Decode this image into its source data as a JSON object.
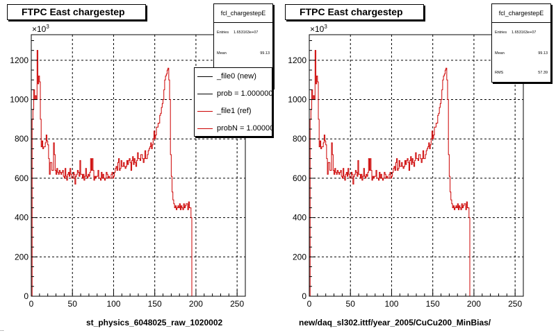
{
  "panels": [
    {
      "title": "FTPC East chargestep",
      "stats": {
        "name": "fcl_chargestepE",
        "entries_label": "Entries",
        "entries": "1.653163e+07",
        "mean_label": "Mean",
        "mean": "99.13",
        "rms_label": "RMS",
        "rms": "57.39"
      },
      "legend": [
        {
          "label": "_file0 (new)",
          "color": "#000000"
        },
        {
          "label": "prob = 1.000000",
          "color": "#000000"
        },
        {
          "label": "_file1 (ref)",
          "color": "#cc0000"
        },
        {
          "label": "probN = 1.000000",
          "color": "#cc0000"
        }
      ],
      "xlabel": "st_physics_6048025_raw_1020002",
      "exponent_base": "×10",
      "exponent_power": "3"
    },
    {
      "title": "FTPC East chargestep",
      "stats": {
        "name": "fcl_chargestepE",
        "entries_label": "Entries",
        "entries": "1.653163e+07",
        "mean_label": "Mean",
        "mean": "99.13",
        "rms_label": "RMS",
        "rms": "57.39"
      },
      "xlabel": "new/daq_sl302.ittf/year_2005/CuCu200_MinBias/",
      "exponent_base": "×10",
      "exponent_power": "3"
    }
  ],
  "footer_fragment": "...",
  "chart_data": {
    "type": "line",
    "x_axis": {
      "range": [
        0,
        260
      ],
      "ticks": [
        0,
        50,
        100,
        150,
        200,
        250
      ]
    },
    "y_axis": {
      "range": [
        0,
        1330
      ],
      "ticks": [
        0,
        200,
        400,
        600,
        800,
        1000,
        1200
      ],
      "multiplier": "1e3"
    },
    "grid": true,
    "x": [
      1,
      2,
      3,
      4,
      5,
      6,
      7,
      8,
      9,
      10,
      11,
      12,
      13,
      14,
      15,
      16,
      17,
      18,
      19,
      20,
      21,
      22,
      23,
      24,
      25,
      26,
      27,
      28,
      29,
      30,
      31,
      32,
      33,
      34,
      35,
      36,
      37,
      38,
      39,
      40,
      41,
      42,
      43,
      44,
      45,
      46,
      47,
      48,
      49,
      50,
      51,
      52,
      53,
      54,
      55,
      56,
      57,
      58,
      59,
      60,
      61,
      62,
      63,
      64,
      65,
      66,
      67,
      68,
      69,
      70,
      71,
      72,
      73,
      74,
      75,
      76,
      77,
      78,
      79,
      80,
      81,
      82,
      83,
      84,
      85,
      86,
      87,
      88,
      89,
      90,
      91,
      92,
      93,
      94,
      95,
      96,
      97,
      98,
      99,
      100,
      101,
      102,
      103,
      104,
      105,
      106,
      107,
      108,
      109,
      110,
      111,
      112,
      113,
      114,
      115,
      116,
      117,
      118,
      119,
      120,
      121,
      122,
      123,
      124,
      125,
      126,
      127,
      128,
      129,
      130,
      131,
      132,
      133,
      134,
      135,
      136,
      137,
      138,
      139,
      140,
      141,
      142,
      143,
      144,
      145,
      146,
      147,
      148,
      149,
      150,
      151,
      152,
      153,
      154,
      155,
      156,
      157,
      158,
      159,
      160,
      161,
      162,
      163,
      164,
      165,
      166,
      167,
      168,
      169,
      170,
      171,
      172,
      173,
      174,
      175,
      176,
      177,
      178,
      179,
      180,
      181,
      182,
      183,
      184,
      185,
      186,
      187,
      188,
      189,
      190,
      191,
      192,
      193,
      194,
      195,
      196,
      197,
      198,
      199,
      200,
      201,
      202,
      203,
      204,
      205,
      206,
      207,
      208,
      209,
      210,
      211,
      212,
      213,
      214,
      215,
      216,
      217,
      218,
      219,
      220,
      221,
      222,
      223,
      224,
      225,
      226,
      227,
      228,
      229,
      230,
      231,
      232,
      233,
      234,
      235,
      236,
      237,
      238,
      239,
      240,
      241,
      242,
      243,
      244,
      245,
      246,
      247,
      248,
      249,
      250,
      251,
      252,
      253,
      254,
      255,
      256,
      257,
      258,
      259,
      260
    ],
    "series": [
      {
        "color": "#cc0000",
        "values": [
          0,
          900,
          950,
          1050,
          1000,
          1020,
          1000,
          1250,
          1080,
          1120,
          1090,
          900,
          760,
          790,
          750,
          760,
          760,
          780,
          820,
          790,
          770,
          700,
          620,
          680,
          680,
          640,
          640,
          780,
          720,
          640,
          620,
          650,
          630,
          620,
          640,
          630,
          620,
          630,
          640,
          610,
          600,
          650,
          610,
          590,
          620,
          630,
          610,
          650,
          620,
          600,
          600,
          630,
          620,
          570,
          610,
          620,
          640,
          630,
          610,
          690,
          620,
          620,
          600,
          620,
          590,
          610,
          650,
          610,
          600,
          620,
          610,
          630,
          700,
          640,
          700,
          640,
          590,
          610,
          600,
          610,
          610,
          640,
          600,
          600,
          590,
          630,
          600,
          620,
          600,
          590,
          600,
          630,
          620,
          600,
          610,
          600,
          600,
          620,
          630,
          600,
          610,
          630,
          650,
          660,
          640,
          680,
          700,
          640,
          650,
          690,
          660,
          660,
          680,
          660,
          650,
          660,
          690,
          670,
          690,
          700,
          680,
          640,
          690,
          710,
          670,
          700,
          680,
          660,
          690,
          730,
          700,
          700,
          690,
          720,
          720,
          700,
          680,
          700,
          740,
          700,
          700,
          720,
          740,
          750,
          760,
          780,
          750,
          770,
          800,
          840,
          800,
          820,
          860,
          860,
          880,
          880,
          920,
          930,
          960,
          980,
          1000,
          1050,
          1100,
          1120,
          1130,
          1150,
          1160,
          1100,
          1000,
          720,
          610,
          530,
          490,
          470,
          450,
          460,
          440,
          450,
          460,
          450,
          470,
          440,
          460,
          450,
          440,
          470,
          450,
          460,
          470,
          470,
          440,
          480,
          450,
          450,
          400,
          0,
          0,
          0,
          0,
          0,
          0,
          0,
          0,
          0,
          0,
          0,
          0,
          0,
          0,
          0,
          0,
          0,
          0,
          0,
          0,
          0,
          0,
          0,
          0,
          0,
          0,
          0,
          0,
          0,
          0,
          0,
          0,
          0,
          0,
          0,
          0,
          0,
          0,
          0,
          0,
          0,
          0,
          0,
          0,
          0,
          0,
          0,
          0,
          0,
          0,
          0,
          0,
          0,
          0,
          0,
          0,
          0,
          0,
          0,
          0,
          0,
          0,
          0,
          0,
          0
        ]
      }
    ]
  }
}
